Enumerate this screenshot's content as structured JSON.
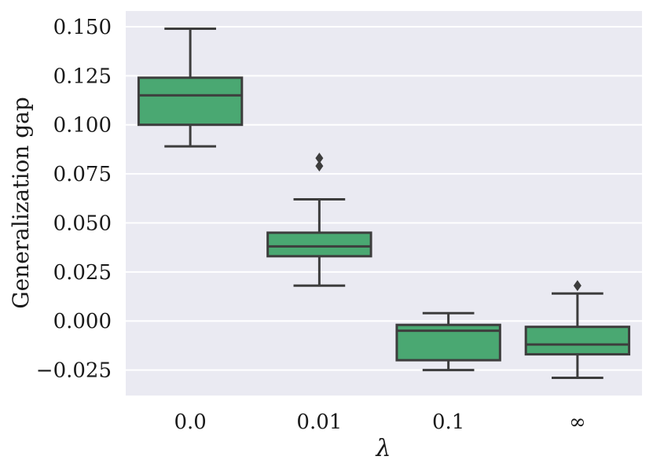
{
  "chart_data": {
    "type": "box",
    "title": "",
    "xlabel": "λ",
    "ylabel": "Generalization gap",
    "categories": [
      "0.0",
      "0.01",
      "0.1",
      "∞"
    ],
    "yticks": [
      0.15,
      0.125,
      0.1,
      0.075,
      0.05,
      0.025,
      0.0,
      -0.025
    ],
    "ytick_labels": [
      "0.150",
      "0.125",
      "0.100",
      "0.075",
      "0.050",
      "0.025",
      "0.000",
      "−0.025"
    ],
    "ylim": [
      -0.038,
      0.158
    ],
    "grid": true,
    "colors": {
      "box_fill": "#4aa872",
      "line": "#3d3d3d",
      "background": "#eaeaf2",
      "grid": "#ffffff"
    },
    "boxes": [
      {
        "category": "0.0",
        "whisker_low": 0.089,
        "q1": 0.1,
        "median": 0.115,
        "q3": 0.124,
        "whisker_high": 0.149,
        "outliers": []
      },
      {
        "category": "0.01",
        "whisker_low": 0.018,
        "q1": 0.033,
        "median": 0.038,
        "q3": 0.045,
        "whisker_high": 0.062,
        "outliers": [
          0.079,
          0.083
        ]
      },
      {
        "category": "0.1",
        "whisker_low": -0.025,
        "q1": -0.02,
        "median": -0.005,
        "q3": -0.002,
        "whisker_high": 0.004,
        "outliers": []
      },
      {
        "category": "∞",
        "whisker_low": -0.029,
        "q1": -0.017,
        "median": -0.012,
        "q3": -0.003,
        "whisker_high": 0.014,
        "outliers": [
          0.018
        ]
      }
    ]
  }
}
